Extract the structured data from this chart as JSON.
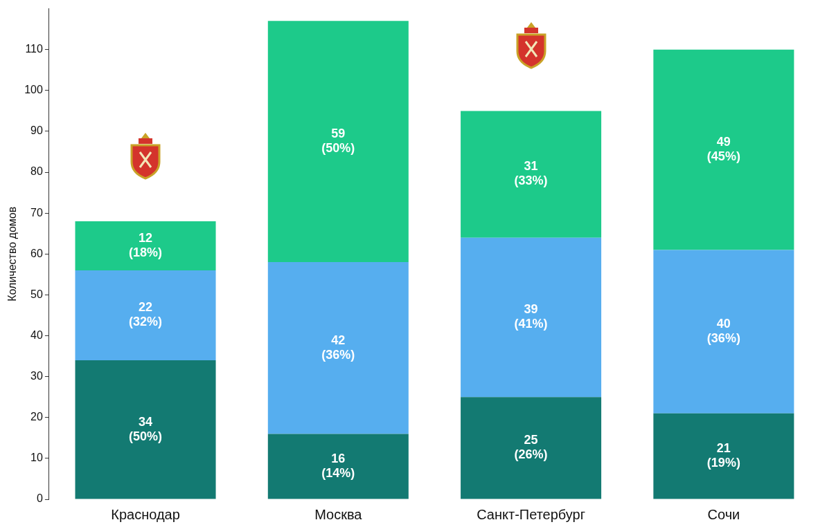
{
  "chart_data": {
    "type": "bar",
    "stacked": true,
    "ylabel": "Количество домов",
    "categories": [
      "Краснодар",
      "Москва",
      "Санкт-Петербург",
      "Сочи"
    ],
    "series": [
      {
        "color": "#137a72",
        "values": [
          34,
          16,
          25,
          21
        ],
        "value_labels": [
          "34 (50%)",
          "16 (14%)",
          "25 (26%)",
          "21 (19%)"
        ]
      },
      {
        "color": "#56aeef",
        "values": [
          22,
          42,
          39,
          40
        ],
        "value_labels": [
          "22 (32%)",
          "42 (36%)",
          "39 (41%)",
          "40 (36%)"
        ]
      },
      {
        "color": "#1dca8a",
        "values": [
          12,
          59,
          31,
          49
        ],
        "value_labels": [
          "12 (18%)",
          "59 (50%)",
          "31 (33%)",
          "49 (45%)"
        ]
      }
    ],
    "ylim": [
      0,
      120
    ],
    "yticks": [
      0,
      10,
      20,
      30,
      40,
      50,
      60,
      70,
      80,
      90,
      100,
      110
    ],
    "grid": false,
    "legend": false
  }
}
